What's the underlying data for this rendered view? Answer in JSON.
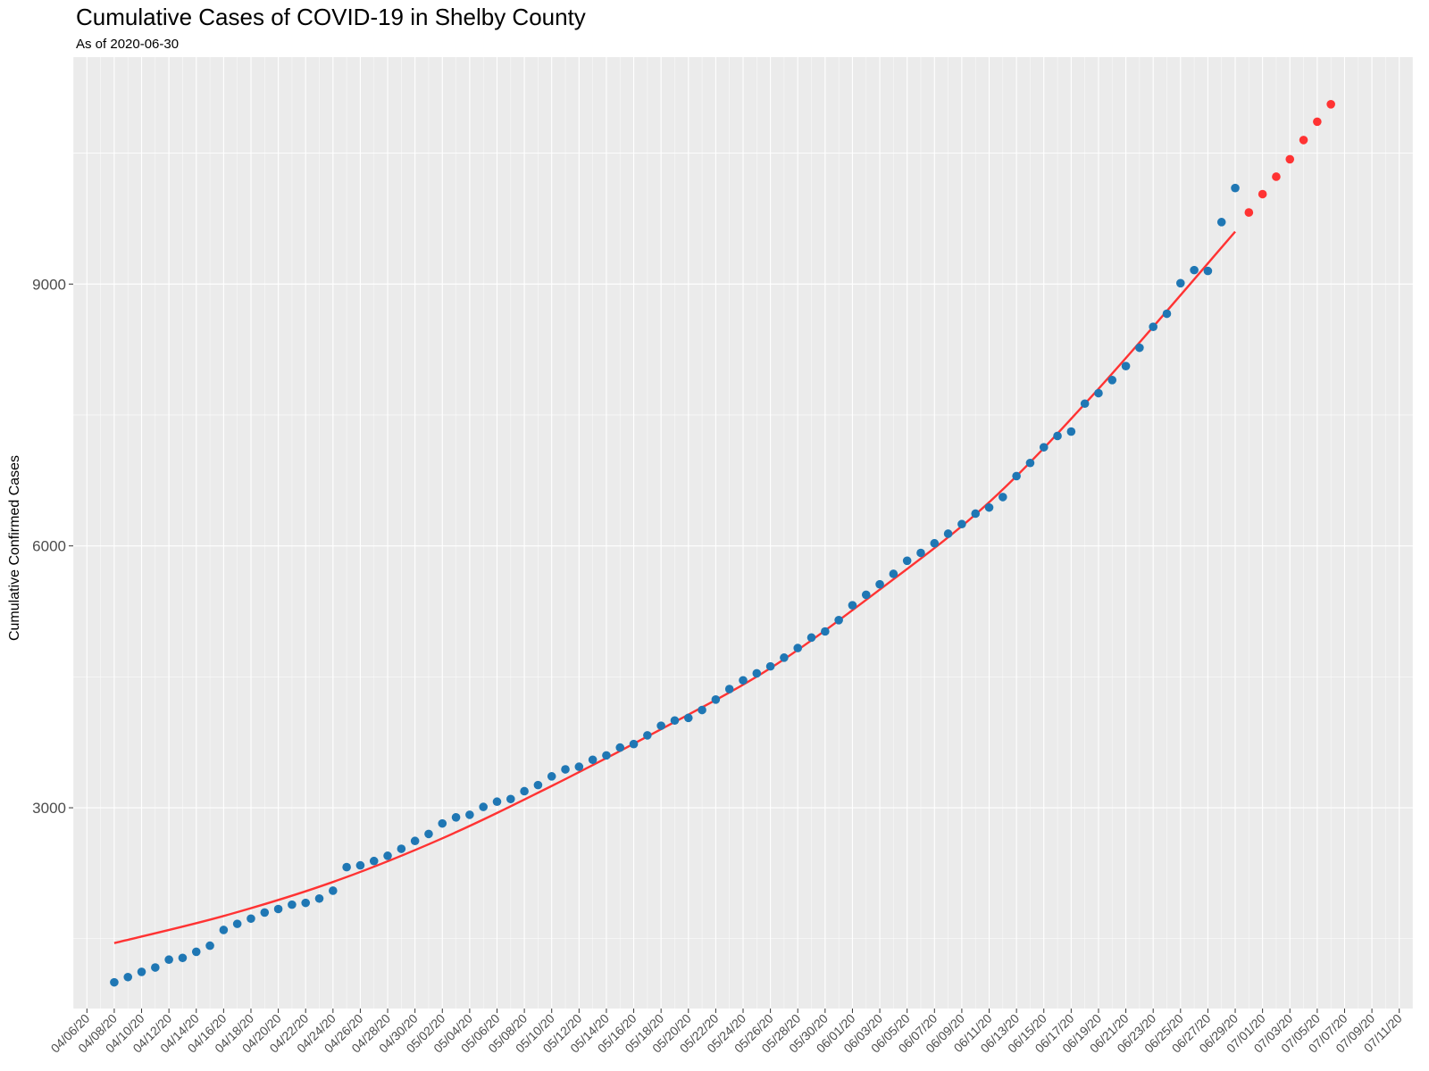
{
  "chart_data": {
    "type": "scatter",
    "title": "Cumulative Cases of COVID-19 in Shelby County",
    "subtitle": "As of 2020-06-30",
    "xlabel": "",
    "ylabel": "Cumulative Confirmed Cases",
    "grid": true,
    "y_ticks": [
      3000,
      6000,
      9000
    ],
    "ylim": [
      700,
      11600
    ],
    "xlim": [
      "2020-04-05",
      "2020-07-12"
    ],
    "x_ticks": [
      "04/06/20",
      "04/08/20",
      "04/10/20",
      "04/12/20",
      "04/14/20",
      "04/16/20",
      "04/18/20",
      "04/20/20",
      "04/22/20",
      "04/24/20",
      "04/26/20",
      "04/28/20",
      "04/30/20",
      "05/02/20",
      "05/04/20",
      "05/06/20",
      "05/08/20",
      "05/10/20",
      "05/12/20",
      "05/14/20",
      "05/16/20",
      "05/18/20",
      "05/20/20",
      "05/22/20",
      "05/24/20",
      "05/26/20",
      "05/28/20",
      "05/30/20",
      "06/01/20",
      "06/03/20",
      "06/05/20",
      "06/07/20",
      "06/09/20",
      "06/11/20",
      "06/13/20",
      "06/15/20",
      "06/17/20",
      "06/19/20",
      "06/21/20",
      "06/23/20",
      "06/25/20",
      "06/27/20",
      "06/29/20",
      "07/01/20",
      "07/03/20",
      "07/05/20",
      "07/07/20",
      "07/09/20",
      "07/11/20"
    ],
    "colors": {
      "observed": "#1f77b4",
      "forecast": "#ff3333",
      "trend": "#ff3333",
      "panel": "#ebebeb",
      "grid": "#ffffff"
    },
    "series": [
      {
        "type": "scatter",
        "color": "#1f77b4",
        "x": [
          "2020-04-08",
          "2020-04-09",
          "2020-04-10",
          "2020-04-11",
          "2020-04-12",
          "2020-04-13",
          "2020-04-14",
          "2020-04-15",
          "2020-04-16",
          "2020-04-17",
          "2020-04-18",
          "2020-04-19",
          "2020-04-20",
          "2020-04-21",
          "2020-04-22",
          "2020-04-23",
          "2020-04-24",
          "2020-04-25",
          "2020-04-26",
          "2020-04-27",
          "2020-04-28",
          "2020-04-29",
          "2020-04-30",
          "2020-05-01",
          "2020-05-02",
          "2020-05-03",
          "2020-05-04",
          "2020-05-05",
          "2020-05-06",
          "2020-05-07",
          "2020-05-08",
          "2020-05-09",
          "2020-05-10",
          "2020-05-11",
          "2020-05-12",
          "2020-05-13",
          "2020-05-14",
          "2020-05-15",
          "2020-05-16",
          "2020-05-17",
          "2020-05-18",
          "2020-05-19",
          "2020-05-20",
          "2020-05-21",
          "2020-05-22",
          "2020-05-23",
          "2020-05-24",
          "2020-05-25",
          "2020-05-26",
          "2020-05-27",
          "2020-05-28",
          "2020-05-29",
          "2020-05-30",
          "2020-05-31",
          "2020-06-01",
          "2020-06-02",
          "2020-06-03",
          "2020-06-04",
          "2020-06-05",
          "2020-06-06",
          "2020-06-07",
          "2020-06-08",
          "2020-06-09",
          "2020-06-10",
          "2020-06-11",
          "2020-06-12",
          "2020-06-13",
          "2020-06-14",
          "2020-06-15",
          "2020-06-16",
          "2020-06-17",
          "2020-06-18",
          "2020-06-19",
          "2020-06-20",
          "2020-06-21",
          "2020-06-22",
          "2020-06-23",
          "2020-06-24",
          "2020-06-25",
          "2020-06-26",
          "2020-06-27",
          "2020-06-28",
          "2020-06-29"
        ],
        "values": [
          1000,
          1060,
          1120,
          1170,
          1260,
          1280,
          1350,
          1420,
          1600,
          1670,
          1730,
          1800,
          1840,
          1890,
          1910,
          1960,
          2050,
          2320,
          2340,
          2390,
          2450,
          2530,
          2620,
          2700,
          2820,
          2890,
          2920,
          3010,
          3070,
          3100,
          3190,
          3260,
          3360,
          3440,
          3470,
          3550,
          3600,
          3690,
          3730,
          3830,
          3940,
          4000,
          4030,
          4120,
          4240,
          4360,
          4460,
          4540,
          4620,
          4720,
          4830,
          4950,
          5020,
          5150,
          5320,
          5440,
          5560,
          5680,
          5830,
          5920,
          6030,
          6140,
          6250,
          6370,
          6440,
          6560,
          6800,
          6950,
          7130,
          7260,
          7310,
          7630,
          7750,
          7900,
          8060,
          8270,
          8510,
          8660,
          9010,
          9160,
          9150,
          9710,
          10100
        ]
      },
      {
        "type": "scatter",
        "color": "#ff3333",
        "x": [
          "2020-06-30",
          "2020-07-01",
          "2020-07-02",
          "2020-07-03",
          "2020-07-04",
          "2020-07-05",
          "2020-07-06"
        ],
        "values": [
          9820,
          10030,
          10230,
          10430,
          10650,
          10860,
          11060
        ]
      },
      {
        "type": "line",
        "color": "#ff3333",
        "x": [
          "2020-04-08",
          "2020-04-16",
          "2020-04-24",
          "2020-05-02",
          "2020-05-10",
          "2020-05-18",
          "2020-05-26",
          "2020-06-03",
          "2020-06-11",
          "2020-06-19",
          "2020-06-29"
        ],
        "values": [
          1450,
          1760,
          2150,
          2650,
          3250,
          3900,
          4600,
          5500,
          6500,
          7800,
          9600
        ]
      }
    ]
  }
}
